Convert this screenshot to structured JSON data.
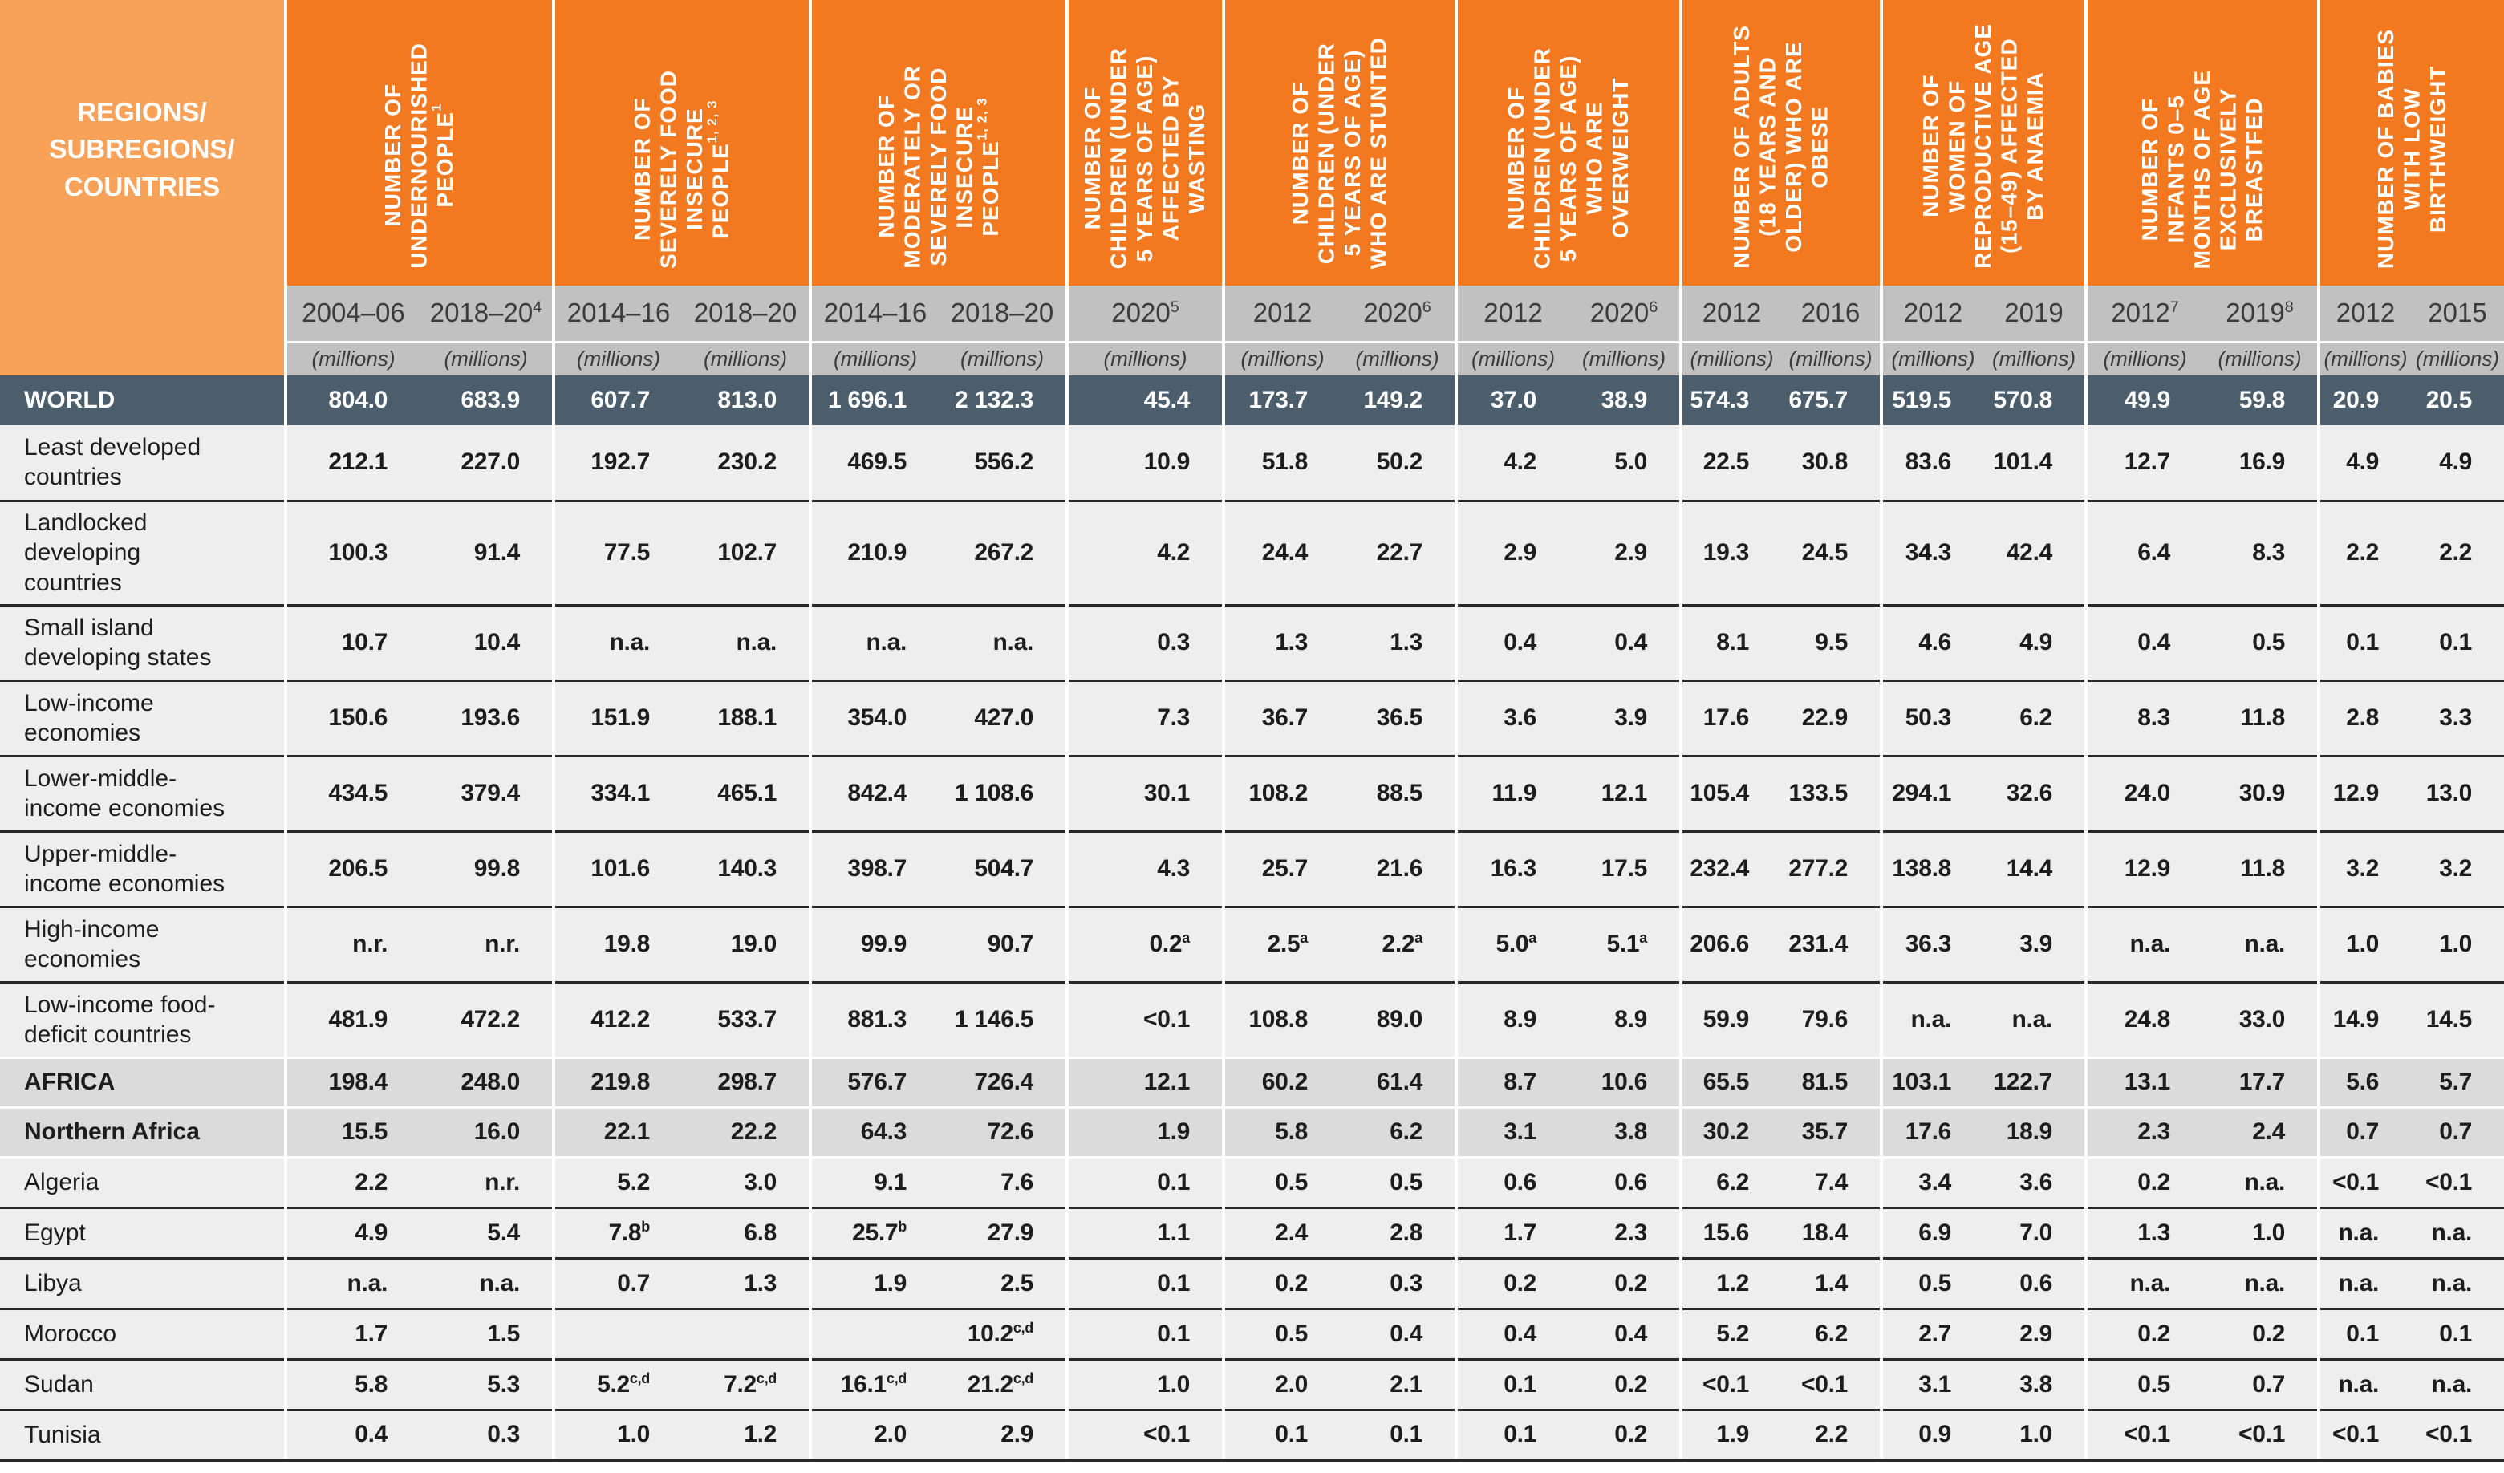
{
  "table": {
    "corner_label": "REGIONS/\nSUBREGIONS/\nCOUNTRIES",
    "unit_label": "(millions)",
    "colors": {
      "header_orange": "#F2791F",
      "corner_orange": "#F7A159",
      "year_band_gray": "#C1C1C1",
      "world_row_slate": "#4C5E6B",
      "row_light_gray": "#EDEEED",
      "row_region_gray": "#DBDBDB",
      "separator_dark": "#282828"
    },
    "groups": [
      {
        "label": "NUMBER OF\nUNDERNOURISHED\nPEOPLE^1",
        "years": [
          "2004–06",
          "2018–20^4"
        ]
      },
      {
        "label": "NUMBER OF\nSEVERELY FOOD\nINSECURE\nPEOPLE^1, 2, 3",
        "years": [
          "2014–16",
          "2018–20"
        ]
      },
      {
        "label": "NUMBER OF\nMODERATELY OR\nSEVERELY FOOD\nINSECURE\nPEOPLE^1, 2, 3",
        "years": [
          "2014–16",
          "2018–20"
        ]
      },
      {
        "label": "NUMBER OF\nCHILDREN (UNDER\n5 YEARS OF AGE)\nAFFECTED BY\nWASTING",
        "years": [
          "2020^5"
        ]
      },
      {
        "label": "NUMBER OF\nCHILDREN (UNDER\n5 YEARS OF AGE)\nWHO ARE STUNTED",
        "years": [
          "2012",
          "2020^6"
        ]
      },
      {
        "label": "NUMBER OF\nCHILDREN (UNDER\n5 YEARS OF AGE)\nWHO ARE\nOVERWEIGHT",
        "years": [
          "2012",
          "2020^6"
        ]
      },
      {
        "label": "NUMBER OF ADULTS\n(18 YEARS AND\nOLDER) WHO ARE\nOBESE",
        "years": [
          "2012",
          "2016"
        ]
      },
      {
        "label": "NUMBER OF\nWOMEN OF\nREPRODUCTIVE AGE\n(15–49) AFFECTED\nBY ANAEMIA",
        "years": [
          "2012",
          "2019"
        ]
      },
      {
        "label": "NUMBER OF\nINFANTS 0–5\nMONTHS OF AGE\nEXCLUSIVELY\nBREASTFED",
        "years": [
          "2012^7",
          "2019^8"
        ]
      },
      {
        "label": "NUMBER OF BABIES\nWITH LOW\nBIRTHWEIGHT",
        "years": [
          "2012",
          "2015"
        ]
      }
    ],
    "rows": [
      {
        "label": "WORLD",
        "type": "world",
        "values": [
          "804.0",
          "683.9",
          "607.7",
          "813.0",
          "1 696.1",
          "2 132.3",
          "45.4",
          "173.7",
          "149.2",
          "37.0",
          "38.9",
          "574.3",
          "675.7",
          "519.5",
          "570.8",
          "49.9",
          "59.8",
          "20.9",
          "20.5"
        ]
      },
      {
        "label": "Least developed countries",
        "type": "group",
        "values": [
          "212.1",
          "227.0",
          "192.7",
          "230.2",
          "469.5",
          "556.2",
          "10.9",
          "51.8",
          "50.2",
          "4.2",
          "5.0",
          "22.5",
          "30.8",
          "83.6",
          "101.4",
          "12.7",
          "16.9",
          "4.9",
          "4.9"
        ]
      },
      {
        "label": "Landlocked developing countries",
        "type": "group-tall",
        "values": [
          "100.3",
          "91.4",
          "77.5",
          "102.7",
          "210.9",
          "267.2",
          "4.2",
          "24.4",
          "22.7",
          "2.9",
          "2.9",
          "19.3",
          "24.5",
          "34.3",
          "42.4",
          "6.4",
          "8.3",
          "2.2",
          "2.2"
        ]
      },
      {
        "label": "Small island developing states",
        "type": "group",
        "values": [
          "10.7",
          "10.4",
          "n.a.",
          "n.a.",
          "n.a.",
          "n.a.",
          "0.3",
          "1.3",
          "1.3",
          "0.4",
          "0.4",
          "8.1",
          "9.5",
          "4.6",
          "4.9",
          "0.4",
          "0.5",
          "0.1",
          "0.1"
        ]
      },
      {
        "label": "Low-income economies",
        "type": "group",
        "values": [
          "150.6",
          "193.6",
          "151.9",
          "188.1",
          "354.0",
          "427.0",
          "7.3",
          "36.7",
          "36.5",
          "3.6",
          "3.9",
          "17.6",
          "22.9",
          "50.3",
          "6.2",
          "8.3",
          "11.8",
          "2.8",
          "3.3"
        ]
      },
      {
        "label": "Lower-middle-income economies",
        "type": "group",
        "values": [
          "434.5",
          "379.4",
          "334.1",
          "465.1",
          "842.4",
          "1 108.6",
          "30.1",
          "108.2",
          "88.5",
          "11.9",
          "12.1",
          "105.4",
          "133.5",
          "294.1",
          "32.6",
          "24.0",
          "30.9",
          "12.9",
          "13.0"
        ]
      },
      {
        "label": "Upper-middle-income economies",
        "type": "group",
        "values": [
          "206.5",
          "99.8",
          "101.6",
          "140.3",
          "398.7",
          "504.7",
          "4.3",
          "25.7",
          "21.6",
          "16.3",
          "17.5",
          "232.4",
          "277.2",
          "138.8",
          "14.4",
          "12.9",
          "11.8",
          "3.2",
          "3.2"
        ]
      },
      {
        "label": "High-income economies",
        "type": "group",
        "values": [
          "n.r.",
          "n.r.",
          "19.8",
          "19.0",
          "99.9",
          "90.7",
          "0.2^a",
          "2.5^a",
          "2.2^a",
          "5.0^a",
          "5.1^a",
          "206.6",
          "231.4",
          "36.3",
          "3.9",
          "n.a.",
          "n.a.",
          "1.0",
          "1.0"
        ]
      },
      {
        "label": "Low-income food-deficit countries",
        "type": "group",
        "values": [
          "481.9",
          "472.2",
          "412.2",
          "533.7",
          "881.3",
          "1 146.5",
          "<0.1",
          "108.8",
          "89.0",
          "8.9",
          "8.9",
          "59.9",
          "79.6",
          "n.a.",
          "n.a.",
          "24.8",
          "33.0",
          "14.9",
          "14.5"
        ]
      },
      {
        "label": "AFRICA",
        "type": "region",
        "values": [
          "198.4",
          "248.0",
          "219.8",
          "298.7",
          "576.7",
          "726.4",
          "12.1",
          "60.2",
          "61.4",
          "8.7",
          "10.6",
          "65.5",
          "81.5",
          "103.1",
          "122.7",
          "13.1",
          "17.7",
          "5.6",
          "5.7"
        ]
      },
      {
        "label": "Northern Africa",
        "type": "subregion",
        "values": [
          "15.5",
          "16.0",
          "22.1",
          "22.2",
          "64.3",
          "72.6",
          "1.9",
          "5.8",
          "6.2",
          "3.1",
          "3.8",
          "30.2",
          "35.7",
          "17.6",
          "18.9",
          "2.3",
          "2.4",
          "0.7",
          "0.7"
        ]
      },
      {
        "label": "Algeria",
        "type": "country",
        "values": [
          "2.2",
          "n.r.",
          "5.2",
          "3.0",
          "9.1",
          "7.6",
          "0.1",
          "0.5",
          "0.5",
          "0.6",
          "0.6",
          "6.2",
          "7.4",
          "3.4",
          "3.6",
          "0.2",
          "n.a.",
          "<0.1",
          "<0.1"
        ]
      },
      {
        "label": "Egypt",
        "type": "country",
        "values": [
          "4.9",
          "5.4",
          "7.8^b",
          "6.8",
          "25.7^b",
          "27.9",
          "1.1",
          "2.4",
          "2.8",
          "1.7",
          "2.3",
          "15.6",
          "18.4",
          "6.9",
          "7.0",
          "1.3",
          "1.0",
          "n.a.",
          "n.a."
        ]
      },
      {
        "label": "Libya",
        "type": "country",
        "values": [
          "n.a.",
          "n.a.",
          "0.7",
          "1.3",
          "1.9",
          "2.5",
          "0.1",
          "0.2",
          "0.3",
          "0.2",
          "0.2",
          "1.2",
          "1.4",
          "0.5",
          "0.6",
          "n.a.",
          "n.a.",
          "n.a.",
          "n.a."
        ]
      },
      {
        "label": "Morocco",
        "type": "country",
        "values": [
          "1.7",
          "1.5",
          "",
          "",
          "",
          "10.2^c,d",
          "0.1",
          "0.5",
          "0.4",
          "0.4",
          "0.4",
          "5.2",
          "6.2",
          "2.7",
          "2.9",
          "0.2",
          "0.2",
          "0.1",
          "0.1"
        ]
      },
      {
        "label": "Sudan",
        "type": "country",
        "values": [
          "5.8",
          "5.3",
          "5.2^c,d",
          "7.2^c,d",
          "16.1^c,d",
          "21.2^c,d",
          "1.0",
          "2.0",
          "2.1",
          "0.1",
          "0.2",
          "<0.1",
          "<0.1",
          "3.1",
          "3.8",
          "0.5",
          "0.7",
          "n.a.",
          "n.a."
        ]
      },
      {
        "label": "Tunisia",
        "type": "country",
        "values": [
          "0.4",
          "0.3",
          "1.0",
          "1.2",
          "2.0",
          "2.9",
          "<0.1",
          "0.1",
          "0.1",
          "0.1",
          "0.2",
          "1.9",
          "2.2",
          "0.9",
          "1.0",
          "<0.1",
          "<0.1",
          "<0.1",
          "<0.1"
        ]
      }
    ]
  }
}
